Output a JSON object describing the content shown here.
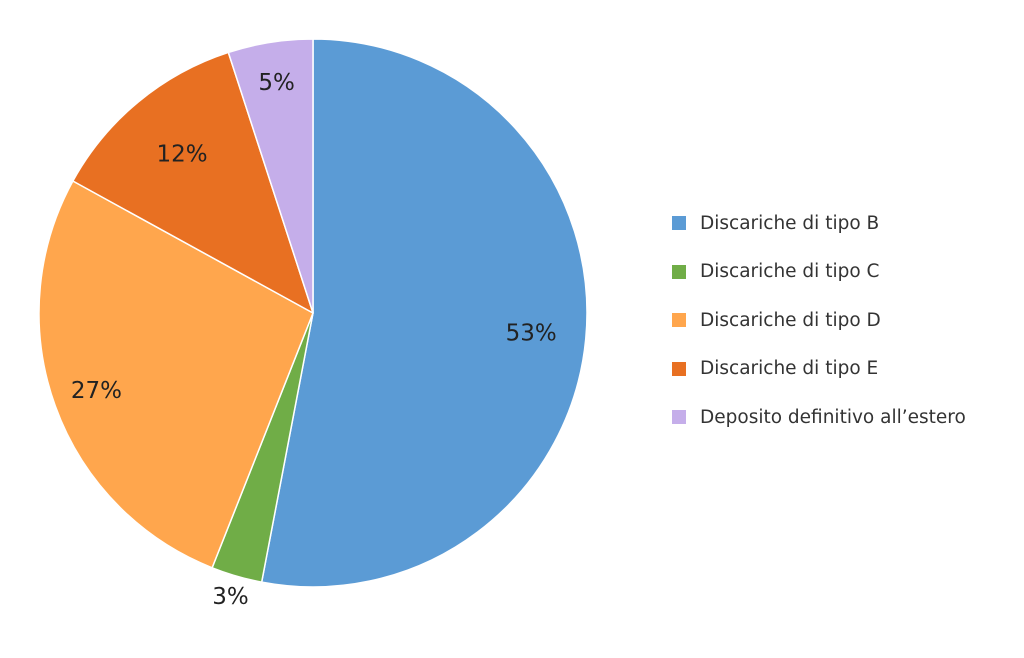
{
  "chart_data": {
    "type": "pie",
    "title": "",
    "categories": [
      "Discariche di tipo B",
      "Discariche di tipo C",
      "Discariche di tipo D",
      "Discariche di tipo E",
      "Deposito definitivo all’estero"
    ],
    "values": [
      53,
      3,
      27,
      12,
      5
    ],
    "value_labels": [
      "53%",
      "3%",
      "27%",
      "12%",
      "5%"
    ],
    "colors": [
      "#5b9bd5",
      "#70ad47",
      "#ffa64d",
      "#e87022",
      "#c5aeea"
    ],
    "start_angle_deg": 0,
    "direction": "clockwise",
    "legend_position": "right"
  }
}
